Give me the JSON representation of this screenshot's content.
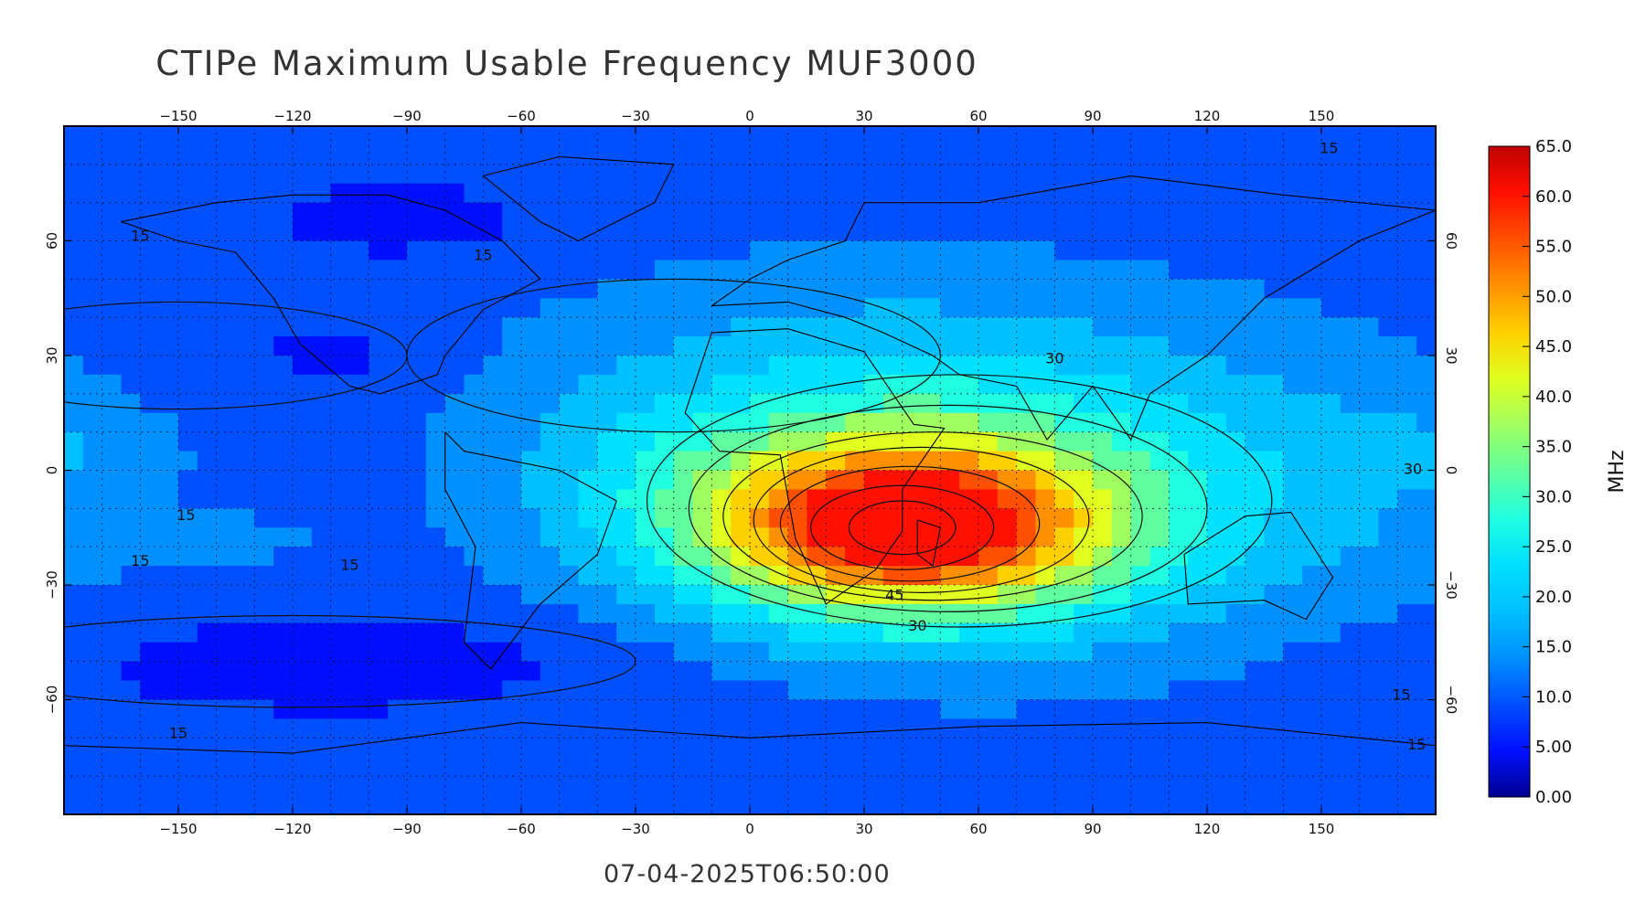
{
  "title": "CTIPe Maximum Usable Frequency MUF3000",
  "timestamp": "07-04-2025T06:50:00",
  "map": {
    "lon_range": [
      -180,
      180
    ],
    "lat_range": [
      -90,
      90
    ],
    "lon_ticks": [
      -150,
      -120,
      -90,
      -60,
      -30,
      0,
      30,
      60,
      90,
      120,
      150
    ],
    "lat_ticks": [
      -60,
      -30,
      0,
      30,
      60
    ],
    "grid": "dotted, every 10 degrees"
  },
  "colorbar": {
    "unit": "MHz",
    "min": 0,
    "max": 65,
    "labels": [
      "65.0",
      "60.0",
      "55.0",
      "50.0",
      "45.0",
      "40.0",
      "35.0",
      "30.0",
      "25.0",
      "20.0",
      "15.0",
      "10.0",
      "5.00",
      "0.00"
    ],
    "colors": [
      "#00008f",
      "#0010ff",
      "#0050ff",
      "#0090ff",
      "#00c0ff",
      "#00e0ff",
      "#20ffdf",
      "#60ff9f",
      "#a0ff60",
      "#e0ff20",
      "#ffd000",
      "#ff9000",
      "#ff5000",
      "#ff1000",
      "#c00000"
    ]
  },
  "contour_labels": [
    "15",
    "15",
    "15",
    "15",
    "15",
    "15",
    "15",
    "15",
    "15",
    "30",
    "30",
    "30",
    "45"
  ],
  "field_description_sources": {
    "peak_lon": 35,
    "peak_lat": -13,
    "peak_value": 62
  }
}
